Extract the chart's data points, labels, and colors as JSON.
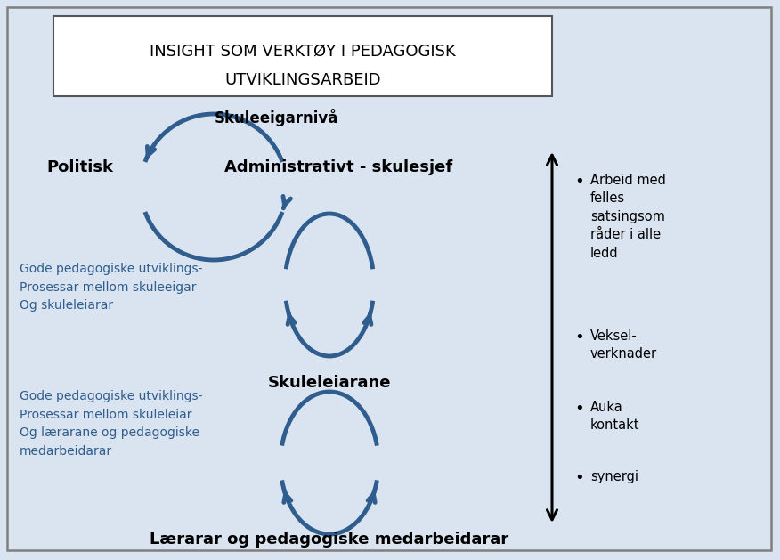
{
  "title_line1": "INSIGHT SOM VERKTØY I PEDAGOGISK",
  "title_line2": "UTVIKLINGSARBEID",
  "bg_color": "#dae3f0",
  "title_box_color": "#ffffff",
  "title_text_color": "#000000",
  "arrow_color": "#2e5d8e",
  "label_skuleeigar": "Skuleeigarnivå",
  "label_politisk": "Politisk",
  "label_admin": "Administrativt - skulesjef",
  "label_skuleleiarane": "Skuleleiarane",
  "label_laerar": "Lærarar og pedagogiske medarbeidarar",
  "blue_text_color": "#2e5d8e",
  "text1_line1": "Gode pedagogiske utviklings-",
  "text1_line2": "Prosessar mellom skuleeigar",
  "text1_line3": "Og skuleleiarar",
  "text2_line1": "Gode pedagogiske utviklings-",
  "text2_line2": "Prosessar mellom skuleleiar",
  "text2_line3": "Og lærarane og pedagogiske",
  "text2_line4": "medarbeidarar",
  "bullet_lines": [
    "Arbeid med",
    "felles",
    "satsingsom",
    "råder i alle",
    "ledd",
    "",
    "Veksel-",
    "verknader",
    "",
    "Auka",
    "kontakt",
    "",
    "synergi"
  ],
  "bullet_markers": [
    0,
    6,
    9,
    12
  ]
}
